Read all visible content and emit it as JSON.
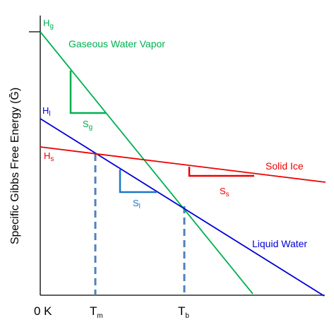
{
  "axes": {
    "ylabel": "Specific Gibbs Free Energy (",
    "ylabel_symbol": "Ḡ",
    "ylabel_close": ")",
    "origin_label": "0 K",
    "x_ticks": [
      {
        "main": "T",
        "sub": "m"
      },
      {
        "main": "T",
        "sub": "b"
      }
    ]
  },
  "series": [
    {
      "key": "vapor",
      "name": "Gaseous Water Vapor",
      "color": "#00b050",
      "intercept": {
        "main": "H",
        "sub": "g"
      },
      "slope": {
        "main": "S",
        "sub": "g"
      }
    },
    {
      "key": "liquid",
      "name": "Liquid Water",
      "color": "#0000d8",
      "intercept": {
        "main": "H",
        "sub": "l"
      },
      "slope": {
        "main": "S",
        "sub": "l"
      }
    },
    {
      "key": "solid",
      "name": "Solid Ice",
      "color": "#ee0000",
      "intercept": {
        "main": "H",
        "sub": "s"
      },
      "slope": {
        "main": "S",
        "sub": "s"
      }
    }
  ],
  "colors": {
    "axis": "#000000",
    "dashed": "#4f81bd"
  }
}
